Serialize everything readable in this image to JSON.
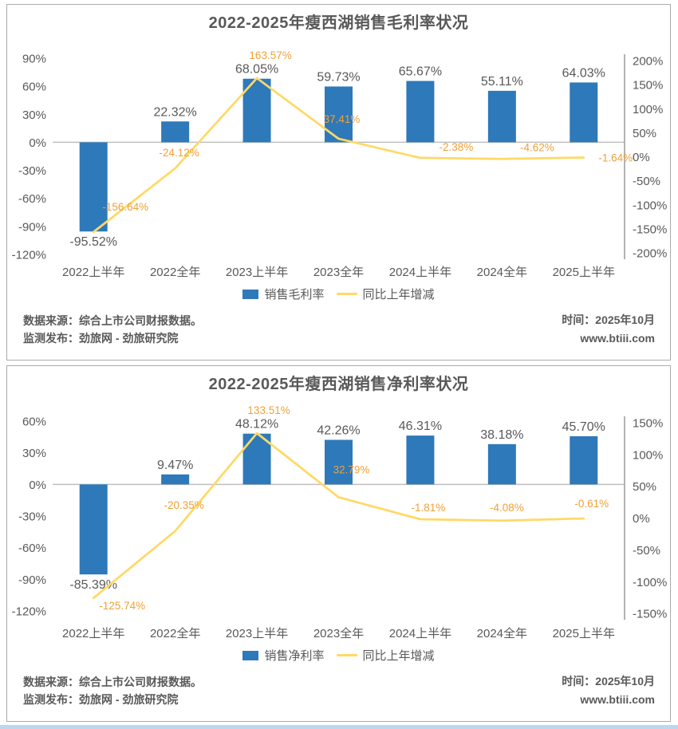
{
  "colors": {
    "bar": "#2E79B9",
    "line": "#FFD966",
    "line_label": "#EFA136",
    "text": "#595959",
    "gridline": "#BFBFBF",
    "axis_line": "#9A9A9A",
    "panel_border": "#ABABAB",
    "bottom_strip": "#BDD7EE"
  },
  "footer": {
    "source_line1": "数据来源：综合上市公司财报数据。",
    "source_line2": "监测发布：劲旅网 - 劲旅研究院",
    "time": "时间：2025年10月",
    "website": "www.btiii.com"
  },
  "chart_data": [
    {
      "type": "combo",
      "title": "2022-2025年瘦西湖销售毛利率状况",
      "categories": [
        "2022上半年",
        "2022全年",
        "2023上半年",
        "2023全年",
        "2024上半年",
        "2024全年",
        "2025上半年"
      ],
      "series": [
        {
          "name": "销售毛利率",
          "type": "bar",
          "axis": "left",
          "values": [
            -95.52,
            22.32,
            68.05,
            59.73,
            65.67,
            55.11,
            64.03
          ],
          "labels": [
            "-95.52%",
            "22.32%",
            "68.05%",
            "59.73%",
            "65.67%",
            "55.11%",
            "64.03%"
          ]
        },
        {
          "name": "同比上年增减",
          "type": "line",
          "axis": "right",
          "values": [
            -156.64,
            -24.12,
            163.57,
            37.41,
            -2.38,
            -4.62,
            -1.64
          ],
          "labels": [
            "-156.64%",
            "-24.12%",
            "163.57%",
            "37.41%",
            "-2.38%",
            "-4.62%",
            "-1.64%"
          ]
        }
      ],
      "left_axis_ticks": [
        90,
        60,
        30,
        0,
        -30,
        -60,
        -90,
        -120
      ],
      "right_axis_ticks": [
        200,
        150,
        100,
        50,
        0,
        -50,
        -100,
        -150,
        -200
      ],
      "left_ylim": [
        -120,
        90
      ],
      "right_ylim": [
        -200,
        200
      ],
      "grid": "zero-line-only",
      "legend_position": "bottom-center"
    },
    {
      "type": "combo",
      "title": "2022-2025年瘦西湖销售净利率状况",
      "categories": [
        "2022上半年",
        "2022全年",
        "2023上半年",
        "2023全年",
        "2024上半年",
        "2024全年",
        "2025上半年"
      ],
      "series": [
        {
          "name": "销售净利率",
          "type": "bar",
          "axis": "left",
          "values": [
            -85.39,
            9.47,
            48.12,
            42.26,
            46.31,
            38.18,
            45.7
          ],
          "labels": [
            "-85.39%",
            "9.47%",
            "48.12%",
            "42.26%",
            "46.31%",
            "38.18%",
            "45.70%"
          ]
        },
        {
          "name": "同比上年增减",
          "type": "line",
          "axis": "right",
          "values": [
            -125.74,
            -20.35,
            133.51,
            32.79,
            -1.81,
            -4.08,
            -0.61
          ],
          "labels": [
            "-125.74%",
            "-20.35%",
            "133.51%",
            "32.79%",
            "-1.81%",
            "-4.08%",
            "-0.61%"
          ]
        }
      ],
      "left_axis_ticks": [
        60,
        30,
        0,
        -30,
        -60,
        -90,
        -120
      ],
      "right_axis_ticks": [
        150,
        100,
        50,
        0,
        -50,
        -100,
        -150
      ],
      "left_ylim": [
        -120,
        60
      ],
      "right_ylim": [
        -150,
        150
      ],
      "grid": "zero-line-only",
      "legend_position": "bottom-center"
    }
  ]
}
